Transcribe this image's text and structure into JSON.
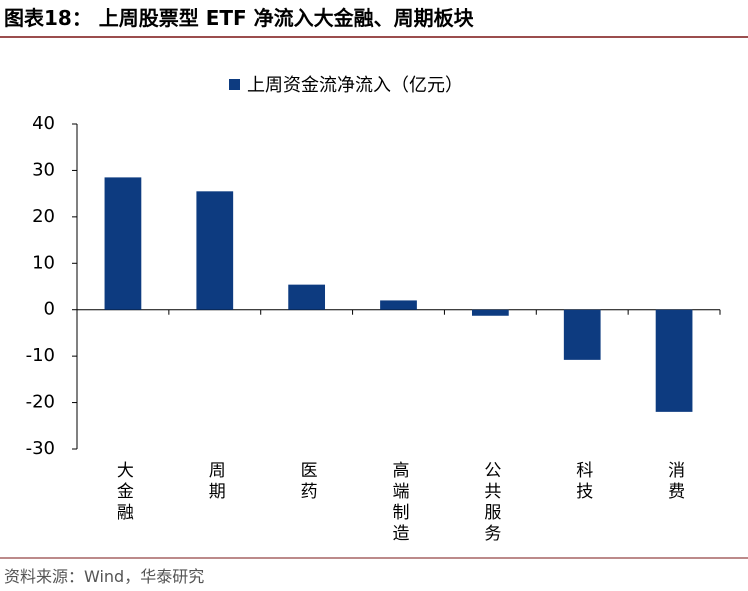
{
  "chart_data": {
    "type": "bar",
    "title": "图表18： 上周股票型 ETF 净流入大金融、周期板块",
    "categories": [
      "大金融",
      "周期",
      "医药",
      "高端制造",
      "公共服务",
      "科技",
      "消费"
    ],
    "series": [
      {
        "name": "上周资金流净流入（亿元）",
        "color": "#0d3b80",
        "values": [
          28.5,
          25.5,
          5.4,
          2,
          -1.3,
          -10.8,
          -22
        ]
      }
    ],
    "ylim": [
      -30,
      40
    ],
    "yticks": [
      -30,
      -20,
      -10,
      0,
      10,
      20,
      30,
      40
    ],
    "source": "资料来源：Wind，华泰研究"
  }
}
